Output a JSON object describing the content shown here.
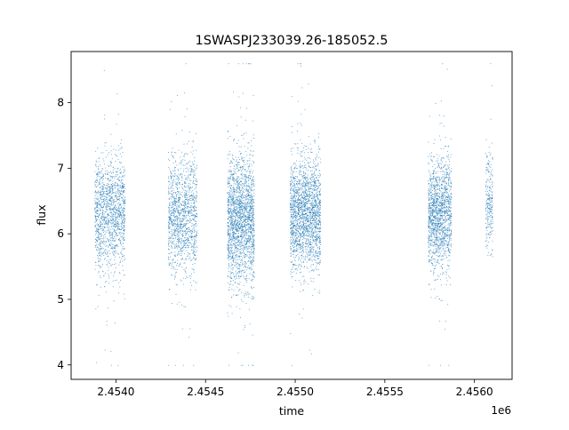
{
  "chart_data": {
    "type": "scatter",
    "title": "1SWASPJ233039.26-185052.5",
    "xlabel": "time",
    "ylabel": "flux",
    "x_offset_label": "1e6",
    "xlim": [
      2.45375,
      2.45621
    ],
    "ylim": [
      3.78,
      8.78
    ],
    "x_ticks": [
      2.454,
      2.4545,
      2.455,
      2.4555,
      2.456
    ],
    "x_tick_labels": [
      "2.4540",
      "2.4545",
      "2.4550",
      "2.4555",
      "2.4560"
    ],
    "y_ticks": [
      4,
      5,
      6,
      7,
      8
    ],
    "y_tick_labels": [
      "4",
      "5",
      "6",
      "7",
      "8"
    ],
    "grid": false,
    "marker_color": "#1f77b4",
    "segments": [
      {
        "x_start": 2.45388,
        "x_end": 2.45405,
        "median": 6.3,
        "spread": 0.42,
        "count": 1400
      },
      {
        "x_start": 2.45429,
        "x_end": 2.45445,
        "median": 6.3,
        "spread": 0.45,
        "count": 1300
      },
      {
        "x_start": 2.45462,
        "x_end": 2.45477,
        "median": 6.2,
        "spread": 0.48,
        "count": 2000
      },
      {
        "x_start": 2.45497,
        "x_end": 2.45514,
        "median": 6.3,
        "spread": 0.42,
        "count": 2000
      },
      {
        "x_start": 2.45574,
        "x_end": 2.45587,
        "median": 6.3,
        "spread": 0.42,
        "count": 1500
      },
      {
        "x_start": 2.45606,
        "x_end": 2.4561,
        "median": 6.5,
        "spread": 0.35,
        "count": 250
      }
    ]
  }
}
